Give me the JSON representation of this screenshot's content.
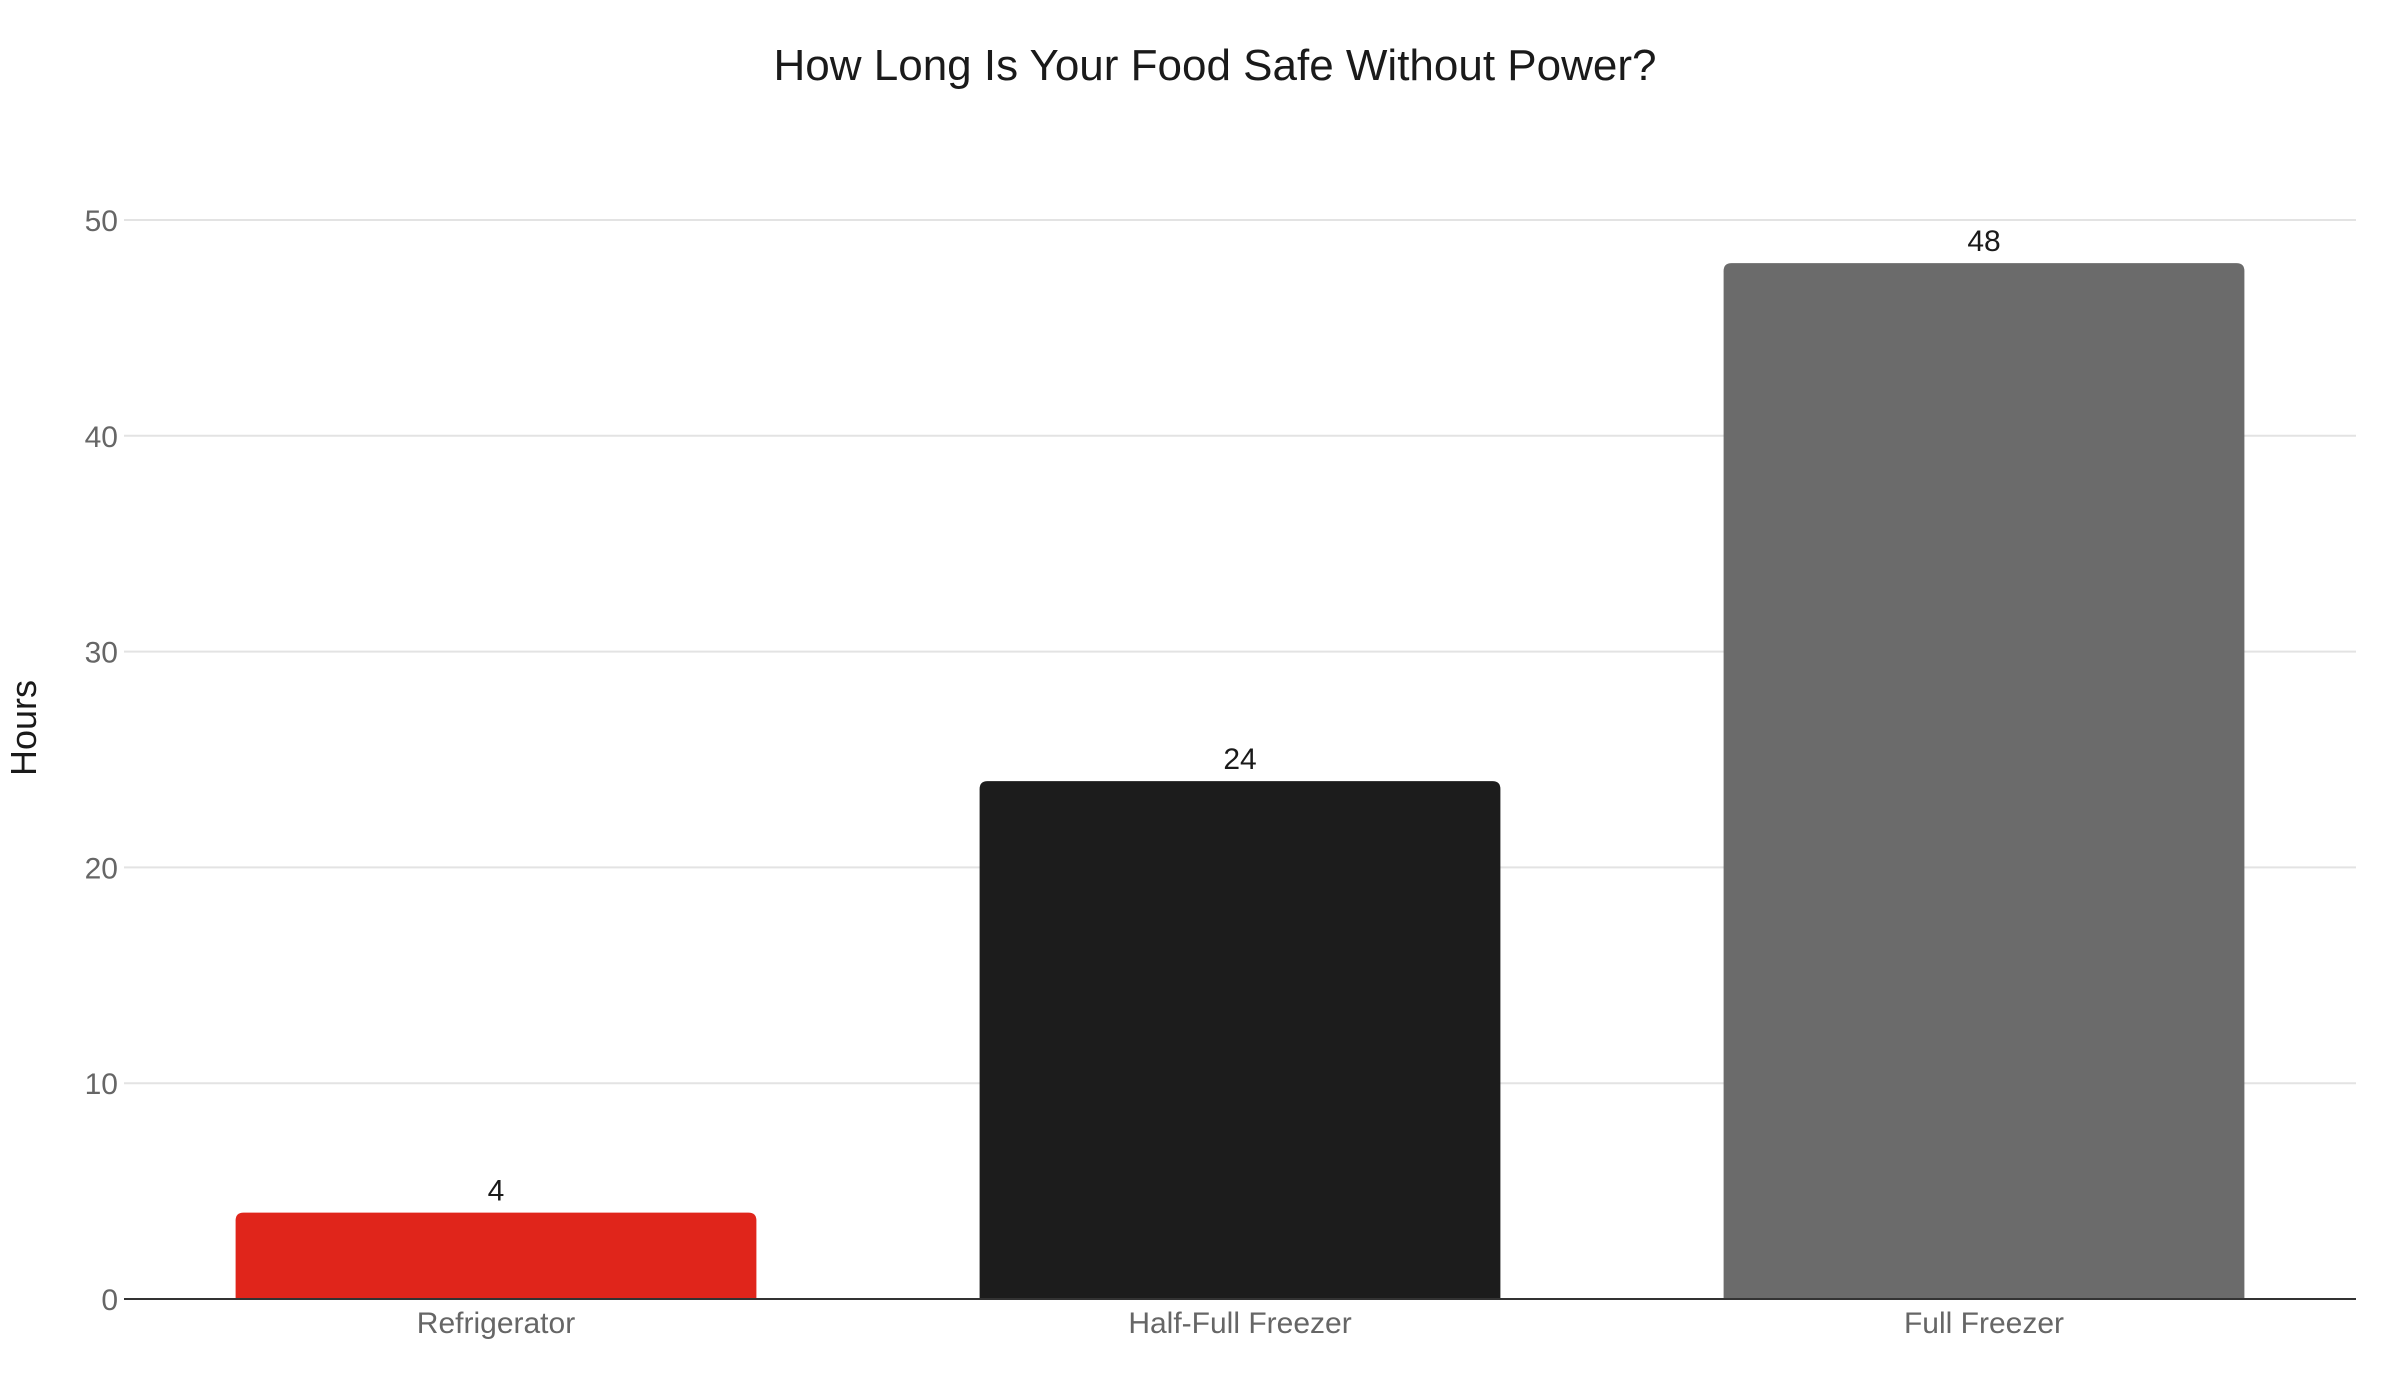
{
  "chart_data": {
    "type": "bar",
    "title": "How Long Is Your Food Safe Without Power?",
    "xlabel": "",
    "ylabel": "Hours",
    "categories": [
      "Refrigerator",
      "Half-Full Freezer",
      "Full Freezer"
    ],
    "values": [
      4,
      24,
      48
    ],
    "colors": [
      "#e0251b",
      "#1c1c1c",
      "#6b6b6b"
    ],
    "data_labels": [
      "4",
      "24",
      "48"
    ],
    "ylim": [
      0,
      50
    ],
    "yticks": [
      0,
      10,
      20,
      30,
      40,
      50
    ],
    "grid": true,
    "legend": "none"
  }
}
